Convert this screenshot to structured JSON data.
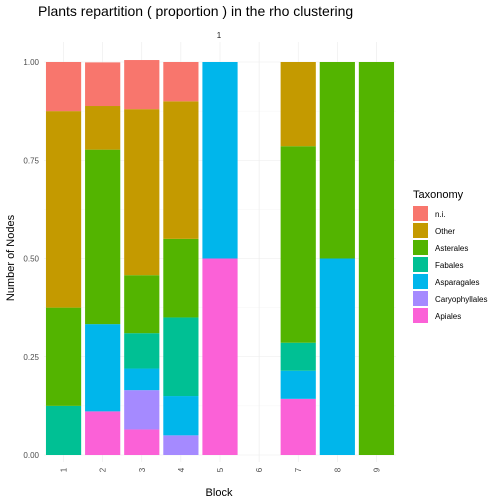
{
  "chart_data": {
    "type": "bar",
    "stacked": true,
    "title": "Plants repartition ( proportion ) in the rho clustering",
    "facet_label": "1",
    "xlabel": "Block",
    "ylabel": "Number of Nodes",
    "ylim": [
      0,
      1
    ],
    "yticks": [
      "0.00",
      "0.25",
      "0.50",
      "0.75",
      "1.00"
    ],
    "grid": true,
    "legend_position": "right",
    "legend_title": "Taxonomy",
    "categories": [
      "1",
      "2",
      "3",
      "4",
      "5",
      "6",
      "7",
      "8",
      "9"
    ],
    "series": [
      {
        "name": "n.i.",
        "color": "#F8766D",
        "values": [
          0.125,
          0.111,
          0.125,
          0.1,
          0,
          0,
          0,
          0,
          0
        ]
      },
      {
        "name": "Other",
        "color": "#C49A00",
        "values": [
          0.5,
          0.111,
          0.4225,
          0.35,
          0,
          0,
          0.2143,
          0,
          0
        ]
      },
      {
        "name": "Asterales",
        "color": "#53B400",
        "values": [
          0.25,
          0.444,
          0.1475,
          0.2,
          0,
          0,
          0.5,
          0.5,
          1.0
        ]
      },
      {
        "name": "Fabales",
        "color": "#00C094",
        "values": [
          0.125,
          0,
          0.09,
          0.2,
          0,
          0,
          0.0714,
          0,
          0
        ]
      },
      {
        "name": "Asparagales",
        "color": "#00B6EB",
        "values": [
          0,
          0.222,
          0.055,
          0.1,
          0.5,
          0,
          0.0714,
          0.5,
          0
        ]
      },
      {
        "name": "Caryophyllales",
        "color": "#A58AFF",
        "values": [
          0,
          0,
          0.1,
          0.05,
          0,
          0,
          0,
          0,
          0
        ]
      },
      {
        "name": "Apiales",
        "color": "#FB61D7",
        "values": [
          0,
          0.111,
          0.065,
          0,
          0.5,
          0,
          0.1429,
          0,
          0
        ]
      }
    ]
  }
}
